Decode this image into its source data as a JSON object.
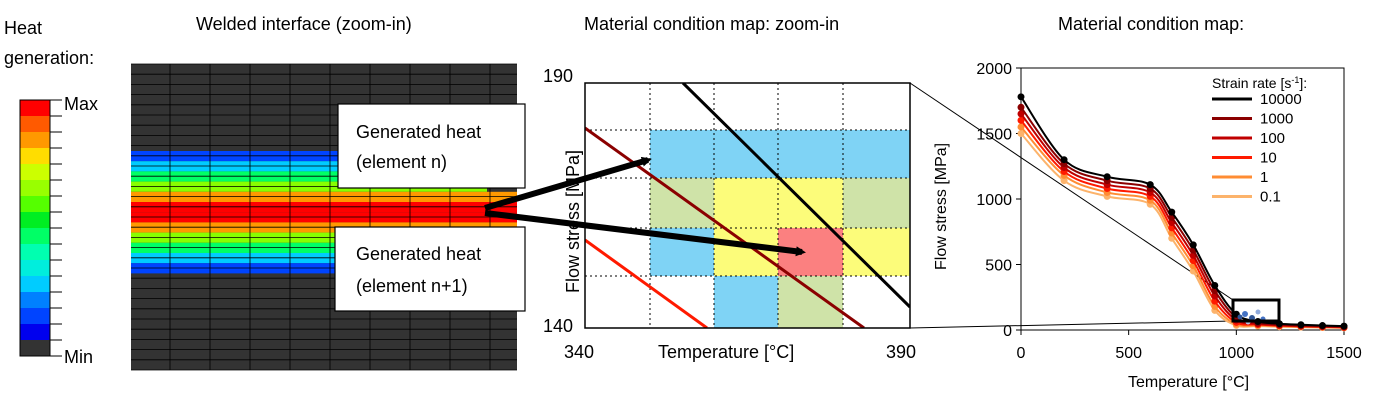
{
  "legend": {
    "title_line1": "Heat",
    "title_line2": "generation:",
    "max_label": "Max",
    "min_label": "Min",
    "colors": [
      "#ff0000",
      "#ff5a00",
      "#ff9900",
      "#ffdd00",
      "#ccff00",
      "#99ff00",
      "#55ff00",
      "#00ee22",
      "#00ff66",
      "#00ffb0",
      "#00eedd",
      "#00ccff",
      "#0080ff",
      "#0044ff",
      "#0000ee",
      "#333333"
    ]
  },
  "panel1": {
    "title": "Welded interface (zoom-in)",
    "band_colors": [
      "#0044ff",
      "#00ccff",
      "#00ff66",
      "#88ff00",
      "#ff9900",
      "#ff0000",
      "#ff0000",
      "#ff9900",
      "#88ff00",
      "#00ff66",
      "#00ccff",
      "#0044ff"
    ]
  },
  "callouts": {
    "a_line1": "Generated heat",
    "a_line2": "(element n)",
    "b_line1": "Generated heat",
    "b_line2": "(element n+1)"
  },
  "panel2": {
    "title": "Material condition map: zoom-in",
    "ylabel": "Flow stress [MPa]",
    "xlabel": "Temperature [°C]",
    "y_max": "190",
    "y_min": "140",
    "x_min": "340",
    "x_max": "390",
    "cells": [
      {
        "col": 1,
        "row": 1,
        "color": "#7fd3f5"
      },
      {
        "col": 2,
        "row": 1,
        "color": "#7fd3f5"
      },
      {
        "col": 3,
        "row": 1,
        "color": "#7fd3f5"
      },
      {
        "col": 4,
        "row": 1,
        "color": "#7fd3f5"
      },
      {
        "col": 1,
        "row": 2,
        "color": "#cfe3a8"
      },
      {
        "col": 2,
        "row": 2,
        "color": "#fcfc7a"
      },
      {
        "col": 3,
        "row": 2,
        "color": "#fcfc7a"
      },
      {
        "col": 4,
        "row": 2,
        "color": "#cfe3a8"
      },
      {
        "col": 1,
        "row": 3,
        "color": "#7fd3f5"
      },
      {
        "col": 2,
        "row": 3,
        "color": "#fcfc7a"
      },
      {
        "col": 3,
        "row": 3,
        "color": "#fb8080"
      },
      {
        "col": 4,
        "row": 3,
        "color": "#fcfc7a"
      },
      {
        "col": 2,
        "row": 4,
        "color": "#7fd3f5"
      },
      {
        "col": 3,
        "row": 4,
        "color": "#cfe3a8"
      }
    ]
  },
  "panel3": {
    "title": "Material condition map:",
    "ylabel": "Flow stress [MPa]",
    "xlabel": "Temperature [°C]",
    "xticks": [
      "0",
      "500",
      "1000",
      "1500"
    ],
    "yticks": [
      "0",
      "500",
      "1000",
      "1500",
      "2000"
    ],
    "legend_title_pre": "Strain rate [s",
    "legend_title_sup": "-1",
    "legend_title_post": "]:"
  },
  "chart_data": {
    "type": "line",
    "title": "Material condition map:",
    "xlabel": "Temperature [°C]",
    "ylabel": "Flow stress [MPa]",
    "xlim": [
      0,
      1500
    ],
    "ylim": [
      0,
      2000
    ],
    "x": [
      0,
      200,
      400,
      600,
      700,
      800,
      900,
      1000,
      1100,
      1200,
      1300,
      1400,
      1500
    ],
    "series": [
      {
        "name": "10000",
        "color": "#000000",
        "values": [
          1780,
          1300,
          1170,
          1110,
          900,
          650,
          340,
          120,
          65,
          48,
          40,
          34,
          30
        ]
      },
      {
        "name": "1000",
        "color": "#8b0000",
        "values": [
          1700,
          1270,
          1140,
          1080,
          860,
          610,
          300,
          95,
          55,
          42,
          35,
          30,
          26
        ]
      },
      {
        "name": "100",
        "color": "#c00000",
        "values": [
          1650,
          1240,
          1110,
          1050,
          820,
          570,
          260,
          75,
          48,
          37,
          31,
          27,
          23
        ]
      },
      {
        "name": "10",
        "color": "#ff1a00",
        "values": [
          1600,
          1210,
          1080,
          1020,
          780,
          530,
          220,
          58,
          42,
          33,
          28,
          24,
          20
        ]
      },
      {
        "name": "1",
        "color": "#ff8c33",
        "values": [
          1550,
          1180,
          1050,
          990,
          740,
          490,
          180,
          45,
          36,
          29,
          25,
          21,
          18
        ]
      },
      {
        "name": "0.1",
        "color": "#fcb36b",
        "values": [
          1500,
          1140,
          1020,
          960,
          700,
          450,
          150,
          35,
          30,
          25,
          22,
          19,
          16
        ]
      }
    ]
  }
}
